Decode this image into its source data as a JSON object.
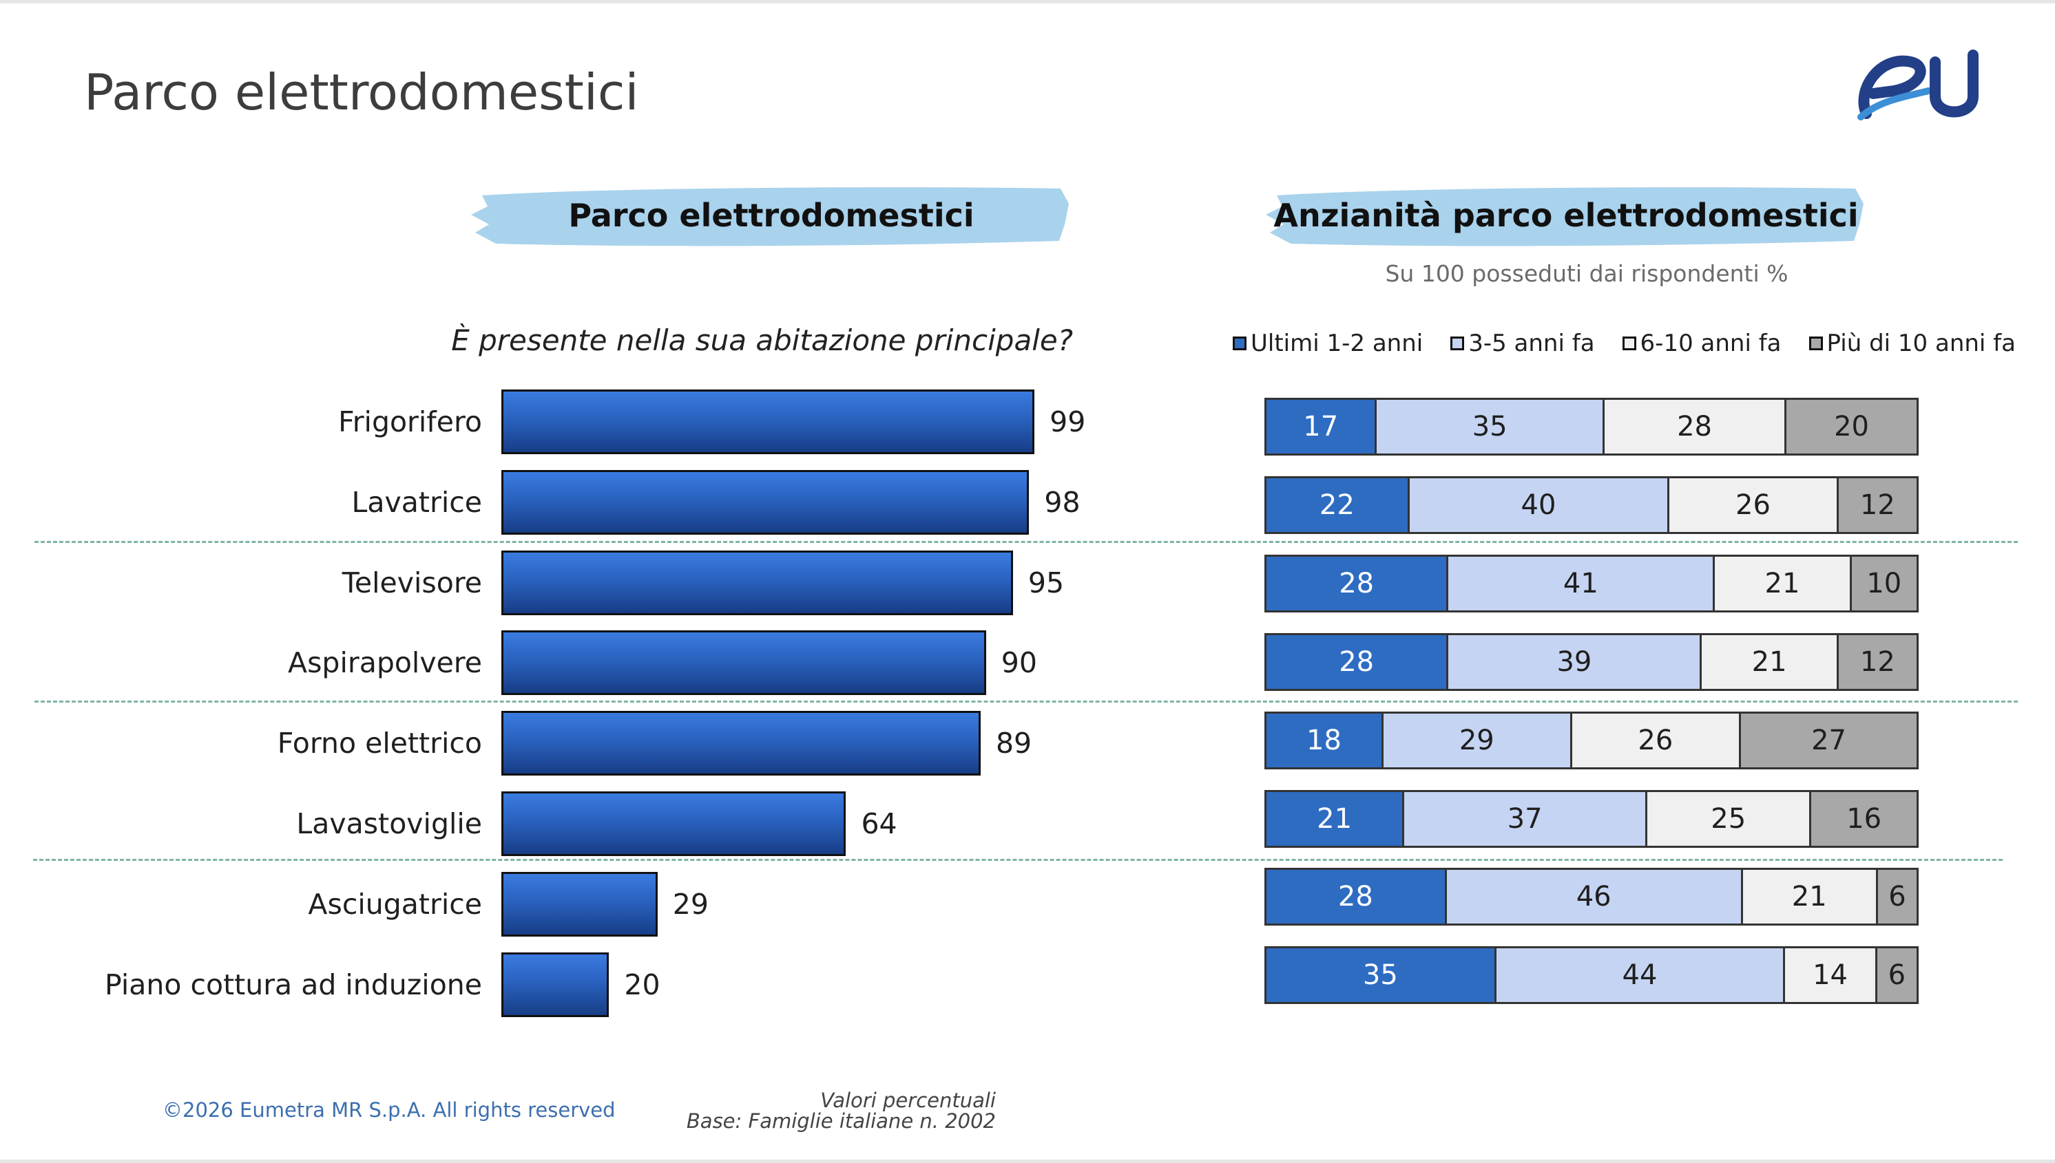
{
  "title": "Parco elettrodomestici",
  "left_panel": {
    "header": "Parco elettrodomestici",
    "question": "È presente nella sua abitazione principale?"
  },
  "right_panel": {
    "header": "Anzianità parco elettrodomestici",
    "subtitle": "Su 100 posseduti dai rispondenti %"
  },
  "colors": {
    "bar": "#2a62bf",
    "brush": "#a9d2ec",
    "seg1": "#2e6cc2",
    "seg2": "#c5d4f2",
    "seg3": "#f0f0f0",
    "seg4": "#a8a8a8",
    "separator": "#7fb3a8",
    "footer": "#3c6fae",
    "logo_dark": "#223f87",
    "logo_light": "#3c8fd6"
  },
  "chart_data": [
    {
      "type": "bar",
      "orientation": "horizontal",
      "title": "Parco elettrodomestici",
      "categories": [
        "Frigorifero",
        "Lavatrice",
        "Televisore",
        "Aspirapolvere",
        "Forno elettrico",
        "Lavastoviglie",
        "Asciugatrice",
        "Piano cottura ad induzione"
      ],
      "values": [
        99,
        98,
        95,
        90,
        89,
        64,
        29,
        20
      ],
      "xlim": [
        0,
        100
      ]
    },
    {
      "type": "bar",
      "stacked": true,
      "orientation": "horizontal",
      "title": "Anzianità parco elettrodomestici",
      "categories": [
        "Frigorifero",
        "Lavatrice",
        "Televisore",
        "Aspirapolvere",
        "Forno elettrico",
        "Lavastoviglie",
        "Asciugatrice",
        "Piano cottura ad induzione"
      ],
      "series": [
        {
          "name": "Ultimi 1-2 anni",
          "values": [
            17,
            22,
            28,
            28,
            18,
            21,
            28,
            35
          ]
        },
        {
          "name": "3-5 anni fa",
          "values": [
            35,
            40,
            41,
            39,
            29,
            37,
            46,
            44
          ]
        },
        {
          "name": "6-10 anni fa",
          "values": [
            28,
            26,
            21,
            21,
            26,
            25,
            21,
            14
          ]
        },
        {
          "name": "Più di 10 anni fa",
          "values": [
            20,
            12,
            10,
            12,
            27,
            16,
            6,
            6
          ]
        }
      ],
      "legend": "top"
    }
  ],
  "footer": {
    "copyright": "©2026 Eumetra MR S.p.A. All rights reserved",
    "note_line1": "Valori percentuali",
    "note_line2": "Base:  Famiglie italiane n. 2002"
  }
}
